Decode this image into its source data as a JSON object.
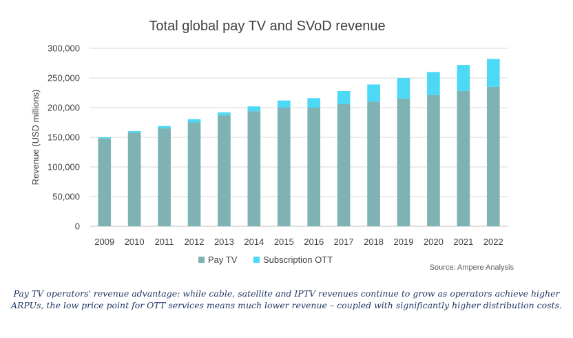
{
  "chart_data": {
    "type": "bar",
    "stacked": true,
    "title": "Total global pay TV and SVoD revenue",
    "ylabel": "Revenue (USD millions)",
    "xlabel": "",
    "ylim": [
      0,
      300000
    ],
    "yticks": [
      "0",
      "50,000",
      "100,000",
      "150,000",
      "200,000",
      "250,000",
      "300,000"
    ],
    "grid": true,
    "legend": "bottom",
    "categories": [
      "2009",
      "2010",
      "2011",
      "2012",
      "2013",
      "2014",
      "2015",
      "2016",
      "2017",
      "2018",
      "2019",
      "2020",
      "2021",
      "2022"
    ],
    "series": [
      {
        "name": "Pay TV",
        "color": "#7fb2b2",
        "values": [
          148000,
          158000,
          165000,
          175000,
          187000,
          194000,
          200000,
          200000,
          206000,
          210000,
          215000,
          221000,
          228000,
          235000
        ]
      },
      {
        "name": "Subscription OTT",
        "color": "#4dd9f5",
        "values": [
          2000,
          2500,
          4000,
          5500,
          5000,
          8000,
          12000,
          16000,
          22000,
          29000,
          35000,
          39000,
          44000,
          47000
        ]
      }
    ]
  },
  "source_text": "Source: Ampere Analysis",
  "caption_text": "Pay TV operators' revenue advantage: while cable, satellite and IPTV revenues continue to grow as operators achieve higher ARPUs, the low price point for OTT services means much lower revenue – coupled with significantly higher distribution costs."
}
